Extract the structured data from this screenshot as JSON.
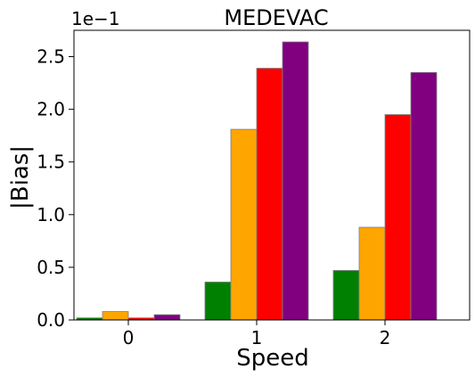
{
  "chart_data": {
    "type": "bar",
    "title": "MEDEVAC",
    "xlabel": "Speed",
    "ylabel": "|Bias|",
    "y_multiplier": "1e−1",
    "categories": [
      "0",
      "1",
      "2"
    ],
    "ylim": [
      0,
      2.75
    ],
    "yticks": [
      "0.0",
      "0.5",
      "1.0",
      "1.5",
      "2.0",
      "2.5"
    ],
    "ytick_values": [
      0,
      0.5,
      1.0,
      1.5,
      2.0,
      2.5
    ],
    "grid": false,
    "series": [
      {
        "color": "#008000",
        "values": [
          0.02,
          0.36,
          0.47
        ]
      },
      {
        "color": "#FFA500",
        "values": [
          0.08,
          1.81,
          0.88
        ]
      },
      {
        "color": "#FF0000",
        "values": [
          0.02,
          2.39,
          1.95
        ]
      },
      {
        "color": "#800080",
        "values": [
          0.05,
          2.64,
          2.35
        ]
      }
    ]
  }
}
